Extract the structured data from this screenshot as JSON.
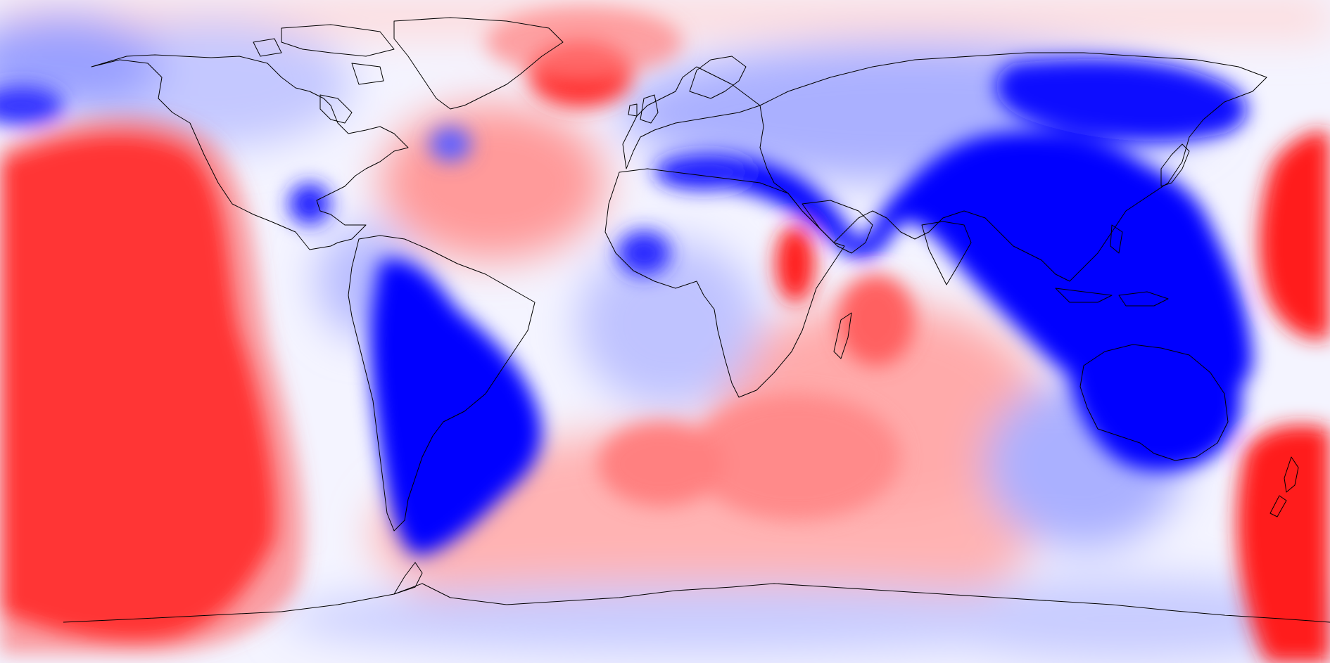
{
  "map": {
    "projection": "equirectangular",
    "center_longitude": -160,
    "colormap": {
      "negative": "#0000ff",
      "neutral": "#ffffff",
      "positive": "#ff0000"
    },
    "coastline_color": "#000000",
    "legend": "none"
  }
}
